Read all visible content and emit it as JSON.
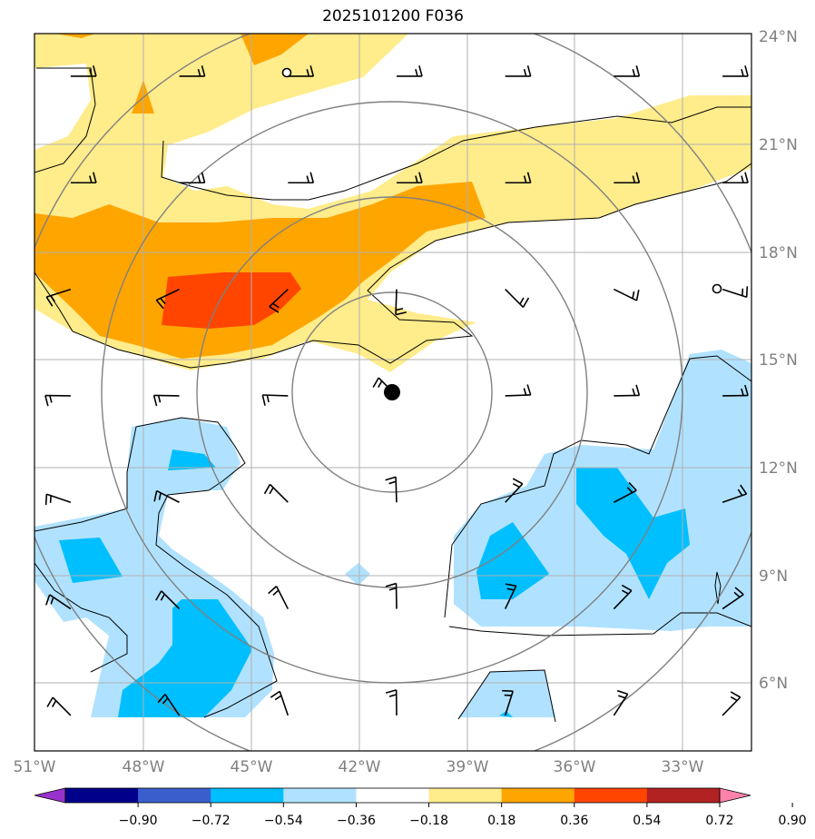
{
  "title": "2025101200 F036",
  "map": {
    "lon_range": [
      -51,
      -31.2
    ],
    "lat_range": [
      4,
      24.2
    ],
    "lat_ticks": [
      "24°N",
      "21°N",
      "18°N",
      "15°N",
      "12°N",
      "9°N",
      "6°N"
    ],
    "lon_ticks": [
      "51°W",
      "48°W",
      "45°W",
      "42°W",
      "39°W",
      "36°W",
      "33°W"
    ],
    "storm_center": {
      "lon": -40.9,
      "lat": 14.1
    },
    "range_ring_count": 4,
    "colors": {
      "grid": "#b0b0b0",
      "ring": "#808080",
      "coast": "#000000",
      "frame": "#000000",
      "storm": "#000000"
    }
  },
  "colorbar": {
    "ticks": [
      "−0.90",
      "−0.72",
      "−0.54",
      "−0.36",
      "−0.18",
      "0.18",
      "0.36",
      "0.54",
      "0.72",
      "0.90"
    ],
    "colors": [
      "#9932cc",
      "#00008b",
      "#3a5fcd",
      "#00bfff",
      "#b0e2ff",
      "#ffffff",
      "#ffec8b",
      "#ffa500",
      "#ff4500",
      "#b22222",
      "#ff82ab"
    ]
  },
  "wind_barbs": [
    {
      "lon": -50,
      "lat": 23
    },
    {
      "lon": -47,
      "lat": 23
    },
    {
      "lon": -44,
      "lat": 23
    },
    {
      "lon": -41,
      "lat": 23
    },
    {
      "lon": -38,
      "lat": 23
    },
    {
      "lon": -35,
      "lat": 23
    },
    {
      "lon": -32,
      "lat": 23
    },
    {
      "lon": -50,
      "lat": 20
    },
    {
      "lon": -47,
      "lat": 20
    },
    {
      "lon": -44,
      "lat": 20
    },
    {
      "lon": -41,
      "lat": 20
    },
    {
      "lon": -38,
      "lat": 20
    },
    {
      "lon": -35,
      "lat": 20
    },
    {
      "lon": -32,
      "lat": 20
    },
    {
      "lon": -50,
      "lat": 17
    },
    {
      "lon": -47,
      "lat": 17
    },
    {
      "lon": -44,
      "lat": 17
    },
    {
      "lon": -41,
      "lat": 17
    },
    {
      "lon": -38,
      "lat": 17
    },
    {
      "lon": -35,
      "lat": 17
    },
    {
      "lon": -32,
      "lat": 17
    },
    {
      "lon": -50,
      "lat": 14
    },
    {
      "lon": -47,
      "lat": 14
    },
    {
      "lon": -44,
      "lat": 14
    },
    {
      "lon": -41,
      "lat": 14
    },
    {
      "lon": -38,
      "lat": 14
    },
    {
      "lon": -35,
      "lat": 14
    },
    {
      "lon": -32,
      "lat": 14
    },
    {
      "lon": -50,
      "lat": 11
    },
    {
      "lon": -47,
      "lat": 11
    },
    {
      "lon": -44,
      "lat": 11
    },
    {
      "lon": -41,
      "lat": 11
    },
    {
      "lon": -38,
      "lat": 11
    },
    {
      "lon": -35,
      "lat": 11
    },
    {
      "lon": -32,
      "lat": 11
    },
    {
      "lon": -50,
      "lat": 8
    },
    {
      "lon": -47,
      "lat": 8
    },
    {
      "lon": -44,
      "lat": 8
    },
    {
      "lon": -41,
      "lat": 8
    },
    {
      "lon": -38,
      "lat": 8
    },
    {
      "lon": -35,
      "lat": 8
    },
    {
      "lon": -32,
      "lat": 8
    },
    {
      "lon": -50,
      "lat": 5
    },
    {
      "lon": -47,
      "lat": 5
    },
    {
      "lon": -44,
      "lat": 5
    },
    {
      "lon": -41,
      "lat": 5
    },
    {
      "lon": -38,
      "lat": 5
    },
    {
      "lon": -35,
      "lat": 5
    },
    {
      "lon": -32,
      "lat": 5
    }
  ]
}
